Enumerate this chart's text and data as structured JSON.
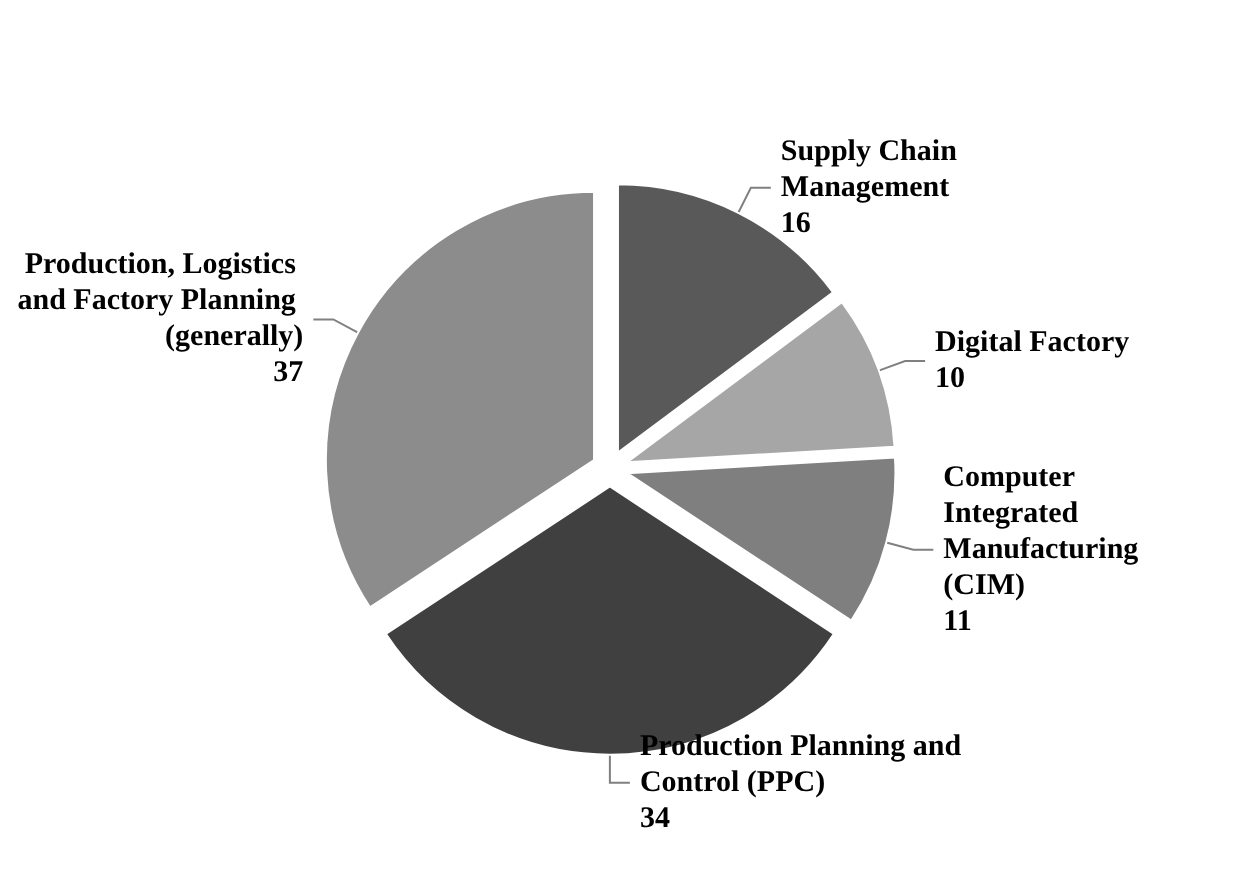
{
  "chart_data": {
    "type": "pie",
    "categories": [
      "Supply Chain Management",
      "Digital Factory",
      "Computer Integrated Manufacturing (CIM)",
      "Production Planning and Control (PPC)",
      "Production, Logistics and Factory Planning (generally)"
    ],
    "values": [
      16,
      10,
      11,
      34,
      37
    ],
    "colors": [
      "#595959",
      "#a6a6a6",
      "#7f7f7f",
      "#404040",
      "#8c8c8c"
    ],
    "data_labels": true,
    "legend": false
  }
}
